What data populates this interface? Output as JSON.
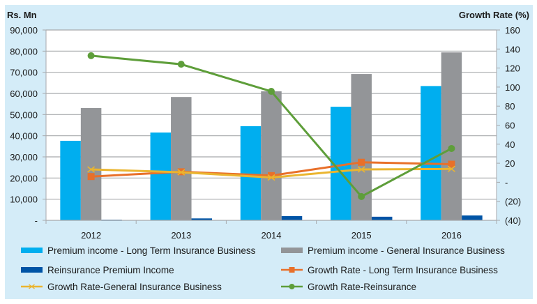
{
  "chart_data": {
    "type": "bar",
    "title": "",
    "categories": [
      "2012",
      "2013",
      "2014",
      "2015",
      "2016"
    ],
    "left_axis": {
      "label": "Rs. Mn",
      "ylim": [
        0,
        90000
      ],
      "ticks": [
        0,
        10000,
        20000,
        30000,
        40000,
        50000,
        60000,
        70000,
        80000,
        90000
      ],
      "tick_labels": [
        "-",
        "10,000",
        "20,000",
        "30,000",
        "40,000",
        "50,000",
        "60,000",
        "70,000",
        "80,000",
        "90,000"
      ]
    },
    "right_axis": {
      "label": "Growth Rate (%)",
      "ylim": [
        -40,
        160
      ],
      "ticks": [
        -40,
        -20,
        0,
        20,
        40,
        60,
        80,
        100,
        120,
        140,
        160
      ],
      "tick_labels": [
        "(40)",
        "(20)",
        "-",
        "20",
        "40",
        "60",
        "80",
        "100",
        "120",
        "140",
        "160"
      ]
    },
    "grid": true,
    "legend_position": "bottom",
    "bar_series": [
      {
        "name": "Premium income - Long Term Insurance Business",
        "color": "#00aeef",
        "values": [
          37600,
          41500,
          44500,
          53700,
          63500
        ]
      },
      {
        "name": "Premium income - General Insurance  Business",
        "color": "#939598",
        "values": [
          53100,
          58300,
          61000,
          69200,
          79400
        ]
      },
      {
        "name": "Reinsurance Premium Income",
        "color": "#0054a6",
        "values": [
          300,
          900,
          2000,
          1700,
          2300
        ]
      }
    ],
    "line_series": [
      {
        "name": "Growth Rate - Long Term Insurance Business",
        "color": "#e8702a",
        "marker": "square",
        "axis": "right",
        "values": [
          6,
          11,
          7,
          21,
          19
        ]
      },
      {
        "name": "Growth Rate-General Insurance  Business",
        "color": "#eab530",
        "marker": "x",
        "axis": "right",
        "values": [
          13.5,
          10.5,
          5,
          13.5,
          14
        ]
      },
      {
        "name": "Growth Rate-Reinsurance",
        "color": "#5e9e3a",
        "marker": "circle",
        "axis": "right",
        "values": [
          133,
          124,
          95.5,
          -15,
          35.5
        ]
      }
    ],
    "legend": [
      {
        "label": "Premium income - Long Term Insurance Business",
        "kind": "bar",
        "series": 0
      },
      {
        "label": "Premium income - General Insurance  Business",
        "kind": "bar",
        "series": 1
      },
      {
        "label": "Reinsurance Premium Income",
        "kind": "bar",
        "series": 2
      },
      {
        "label": "Growth Rate - Long Term Insurance Business",
        "kind": "line",
        "series": 0
      },
      {
        "label": "Growth Rate-General Insurance  Business",
        "kind": "line",
        "series": 1
      },
      {
        "label": "Growth Rate-Reinsurance",
        "kind": "line",
        "series": 2
      }
    ]
  }
}
